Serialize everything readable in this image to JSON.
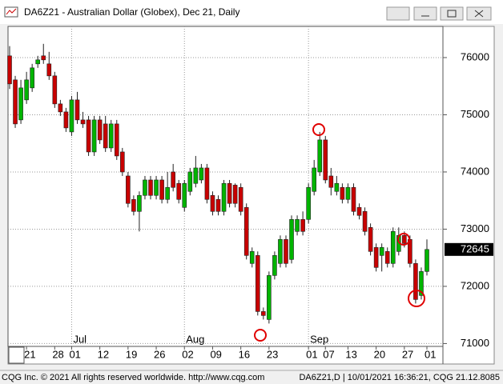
{
  "window": {
    "title": "DA6Z21 - Australian Dollar (Globex), Dec 21, Daily"
  },
  "chart_data": {
    "type": "candlestick",
    "categories": [
      null,
      null,
      null,
      "21",
      null,
      null,
      null,
      null,
      "28",
      null,
      null,
      "01",
      null,
      null,
      null,
      null,
      "12",
      null,
      null,
      null,
      null,
      "19",
      null,
      null,
      null,
      null,
      "26",
      null,
      null,
      null,
      null,
      "02",
      null,
      null,
      null,
      null,
      "09",
      null,
      null,
      null,
      null,
      "16",
      null,
      null,
      null,
      null,
      "23",
      null,
      null,
      null,
      null,
      null,
      null,
      "01",
      null,
      null,
      "07",
      null,
      null,
      null,
      "13",
      null,
      null,
      null,
      null,
      "20",
      null,
      null,
      null,
      null,
      "27",
      null,
      null,
      null,
      "01"
    ],
    "months": [
      "Jul",
      "Aug",
      "Sep"
    ],
    "open": [
      76030,
      75610,
      74910,
      75260,
      75470,
      75890,
      76030,
      75890,
      75680,
      75190,
      75050,
      74700,
      75260,
      74910,
      74910,
      74350,
      74910,
      74840,
      74420,
      74840,
      74350,
      73930,
      73520,
      73310,
      73590,
      73860,
      73590,
      73860,
      73520,
      74000,
      73800,
      73380,
      73660,
      73800,
      73860,
      74070,
      73590,
      73520,
      73310,
      73800,
      73770,
      73730,
      73380,
      72400,
      72540,
      71560,
      71420,
      72190,
      72400,
      72820,
      72470,
      72960,
      73170,
      73170,
      73660,
      74000,
      74560,
      73930,
      73660,
      73730,
      73520,
      73730,
      73380,
      73310,
      73030,
      72680,
      72540,
      72610,
      72400,
      72610,
      72890,
      72820,
      72400,
      71840,
      72260
    ],
    "high": [
      76200,
      75680,
      75610,
      75750,
      75890,
      76030,
      76240,
      76100,
      75750,
      75260,
      75120,
      75330,
      75400,
      75050,
      74980,
      74980,
      74980,
      74980,
      74910,
      74910,
      74420,
      74000,
      73590,
      73660,
      73930,
      73930,
      73930,
      73930,
      74000,
      74140,
      73860,
      73860,
      74070,
      74280,
      74140,
      74140,
      73660,
      73590,
      73860,
      73860,
      73800,
      73800,
      73450,
      72680,
      72610,
      71630,
      72260,
      72610,
      72890,
      72890,
      73240,
      73240,
      73310,
      73800,
      74210,
      74700,
      74630,
      74070,
      73930,
      73800,
      73800,
      73800,
      73450,
      73380,
      73100,
      72750,
      72750,
      72680,
      73030,
      73030,
      72960,
      72890,
      72470,
      72330,
      72820
    ],
    "low": [
      75450,
      74770,
      74840,
      75190,
      75400,
      75820,
      75890,
      75610,
      75120,
      74980,
      74700,
      74630,
      74840,
      74770,
      74280,
      74280,
      74490,
      74350,
      74350,
      74210,
      73930,
      73380,
      73240,
      72960,
      73520,
      73520,
      73520,
      73450,
      73450,
      73660,
      73450,
      73310,
      73590,
      73730,
      73800,
      73450,
      73240,
      73240,
      73240,
      73380,
      73380,
      73240,
      72470,
      72330,
      71490,
      71420,
      71350,
      72120,
      72330,
      72330,
      72400,
      72890,
      72890,
      73100,
      73590,
      73930,
      73800,
      73590,
      73590,
      73450,
      73450,
      73240,
      73170,
      72890,
      72540,
      72260,
      72260,
      72330,
      72330,
      72540,
      72680,
      72330,
      71700,
      71770,
      72190
    ],
    "close": [
      75540,
      74840,
      75470,
      75610,
      75820,
      75960,
      75960,
      75680,
      75190,
      75050,
      74770,
      75260,
      74910,
      74840,
      74350,
      74910,
      74560,
      74420,
      74840,
      74280,
      74000,
      73450,
      73310,
      73590,
      73860,
      73590,
      73860,
      73520,
      73730,
      73730,
      73520,
      73800,
      74000,
      74070,
      74070,
      73520,
      73310,
      73310,
      73800,
      73450,
      73450,
      73310,
      72540,
      72610,
      71560,
      71490,
      72190,
      72540,
      72820,
      72400,
      73170,
      73170,
      72960,
      73730,
      74070,
      74560,
      73860,
      73730,
      73800,
      73520,
      73730,
      73310,
      73240,
      72960,
      72610,
      72330,
      72680,
      72400,
      72960,
      72890,
      72750,
      72400,
      71770,
      72260,
      72645
    ],
    "up_color": "#00b400",
    "down_color": "#c80000",
    "last_price": 72645,
    "ylim": [
      70950,
      76545
    ],
    "yticks": [
      71000,
      72000,
      73000,
      74000,
      75000,
      76000
    ],
    "grid": true
  },
  "footer": {
    "left": "CQG Inc. © 2021 All rights reserved worldwide. http://www.cqg.com",
    "right": "DA6Z21,D | 10/01/2021 16:36:21, CQG 21.12.8085"
  }
}
